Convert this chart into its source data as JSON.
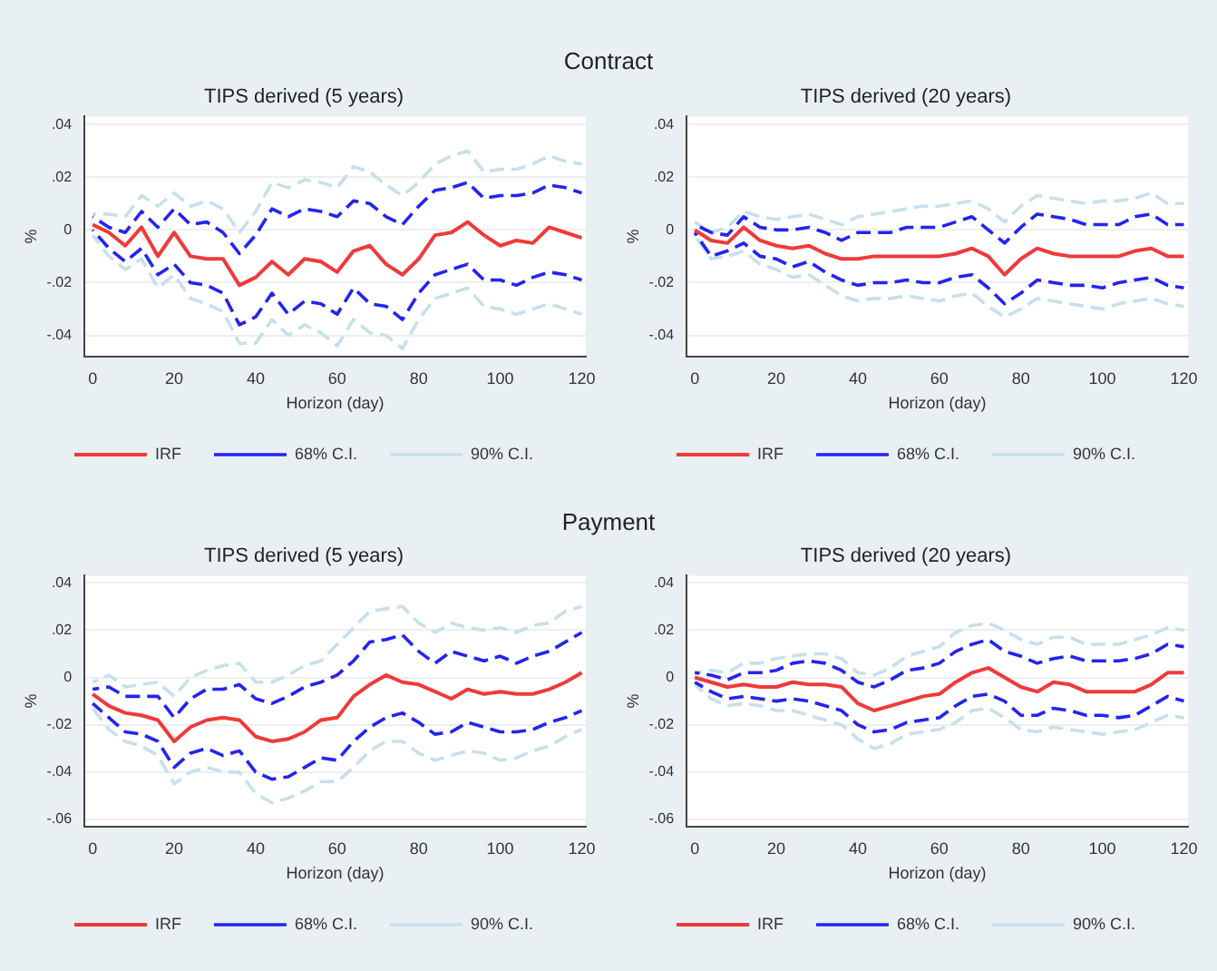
{
  "chart_data": [
    {
      "type": "line",
      "title": "TIPS derived (5 years)",
      "annotations": [
        "Contract"
      ],
      "xlabel": "Horizon (day)",
      "ylabel": "%",
      "grid": "y",
      "legend": "bottom",
      "marker": "none",
      "x": [
        0,
        4,
        8,
        12,
        16,
        20,
        24,
        28,
        32,
        36,
        40,
        44,
        48,
        52,
        56,
        60,
        64,
        68,
        72,
        76,
        80,
        84,
        88,
        92,
        96,
        100,
        104,
        108,
        112,
        116,
        120
      ],
      "xlim": [
        -2,
        121
      ],
      "xticks": [
        0,
        20,
        40,
        60,
        80,
        100,
        120
      ],
      "ylim": [
        -0.048,
        0.043
      ],
      "yticks": [
        {
          "value": 0.04,
          "label": ".04"
        },
        {
          "value": 0.02,
          "label": ".02"
        },
        {
          "value": 0,
          "label": "0"
        },
        {
          "value": -0.02,
          "label": "-.02"
        },
        {
          "value": -0.04,
          "label": "-.04"
        }
      ],
      "series": [
        {
          "name": "IRF",
          "color": "#f03a3a",
          "line_style": "solid",
          "values": [
            0.002,
            -0.001,
            -0.006,
            0.001,
            -0.01,
            -0.001,
            -0.01,
            -0.011,
            -0.011,
            -0.021,
            -0.018,
            -0.012,
            -0.017,
            -0.011,
            -0.012,
            -0.016,
            -0.008,
            -0.006,
            -0.013,
            -0.017,
            -0.011,
            -0.002,
            -0.001,
            0.003,
            -0.002,
            -0.006,
            -0.004,
            -0.005,
            0.001,
            -0.001,
            -0.003
          ]
        },
        {
          "name": "68% C.I.",
          "color": "#2424f0",
          "line_style": "dashed",
          "values": [
            0.005,
            0.001,
            -0.001,
            0.007,
            0.001,
            0.008,
            0.002,
            0.003,
            -0.001,
            -0.009,
            -0.002,
            0.008,
            0.005,
            0.008,
            0.007,
            0.005,
            0.011,
            0.01,
            0.005,
            0.002,
            0.009,
            0.015,
            0.016,
            0.018,
            0.012,
            0.013,
            0.013,
            0.014,
            0.017,
            0.016,
            0.014
          ]
        },
        {
          "color": "#2424f0",
          "line_style": "dashed",
          "values": [
            0,
            -0.007,
            -0.012,
            -0.007,
            -0.017,
            -0.013,
            -0.02,
            -0.021,
            -0.024,
            -0.036,
            -0.033,
            -0.024,
            -0.032,
            -0.027,
            -0.028,
            -0.032,
            -0.022,
            -0.028,
            -0.029,
            -0.034,
            -0.024,
            -0.017,
            -0.015,
            -0.013,
            -0.019,
            -0.019,
            -0.021,
            -0.018,
            -0.016,
            -0.017,
            -0.019
          ]
        },
        {
          "name": "90% C.I.",
          "color": "#c6e0ec",
          "line_style": "dashed",
          "values": [
            0.006,
            0.006,
            0.005,
            0.013,
            0.009,
            0.014,
            0.009,
            0.011,
            0.008,
            -0.001,
            0.007,
            0.018,
            0.016,
            0.019,
            0.018,
            0.016,
            0.024,
            0.022,
            0.017,
            0.013,
            0.018,
            0.025,
            0.028,
            0.03,
            0.022,
            0.023,
            0.023,
            0.025,
            0.028,
            0.026,
            0.025
          ]
        },
        {
          "color": "#c6e0ec",
          "line_style": "dashed",
          "values": [
            -0.002,
            -0.01,
            -0.015,
            -0.011,
            -0.022,
            -0.017,
            -0.026,
            -0.028,
            -0.031,
            -0.043,
            -0.043,
            -0.034,
            -0.04,
            -0.036,
            -0.039,
            -0.044,
            -0.034,
            -0.039,
            -0.04,
            -0.045,
            -0.034,
            -0.026,
            -0.024,
            -0.022,
            -0.029,
            -0.03,
            -0.032,
            -0.03,
            -0.028,
            -0.03,
            -0.032
          ]
        }
      ]
    },
    {
      "type": "line",
      "title": "TIPS derived (20 years)",
      "xlabel": "Horizon (day)",
      "ylabel": "%",
      "grid": "y",
      "legend": "bottom",
      "marker": "none",
      "x": [
        0,
        4,
        8,
        12,
        16,
        20,
        24,
        28,
        32,
        36,
        40,
        44,
        48,
        52,
        56,
        60,
        64,
        68,
        72,
        76,
        80,
        84,
        88,
        92,
        96,
        100,
        104,
        108,
        112,
        116,
        120
      ],
      "xlim": [
        -2,
        121
      ],
      "xticks": [
        0,
        20,
        40,
        60,
        80,
        100,
        120
      ],
      "ylim": [
        -0.048,
        0.043
      ],
      "yticks": [
        {
          "value": 0.04,
          "label": ".04"
        },
        {
          "value": 0.02,
          "label": ".02"
        },
        {
          "value": 0,
          "label": "0"
        },
        {
          "value": -0.02,
          "label": "-.02"
        },
        {
          "value": -0.04,
          "label": "-.04"
        }
      ],
      "series": [
        {
          "name": "IRF",
          "color": "#f03a3a",
          "line_style": "solid",
          "values": [
            0,
            -0.004,
            -0.005,
            0.001,
            -0.004,
            -0.006,
            -0.007,
            -0.006,
            -0.009,
            -0.011,
            -0.011,
            -0.01,
            -0.01,
            -0.01,
            -0.01,
            -0.01,
            -0.009,
            -0.007,
            -0.01,
            -0.017,
            -0.011,
            -0.007,
            -0.009,
            -0.01,
            -0.01,
            -0.01,
            -0.01,
            -0.008,
            -0.007,
            -0.01,
            -0.01
          ]
        },
        {
          "name": "68% C.I.",
          "color": "#2424f0",
          "line_style": "dashed",
          "values": [
            0.002,
            -0.001,
            -0.002,
            0.005,
            0.001,
            0,
            0,
            0.001,
            -0.001,
            -0.004,
            -0.001,
            -0.001,
            -0.001,
            0.001,
            0.001,
            0.001,
            0.003,
            0.005,
            0,
            -0.005,
            0.001,
            0.006,
            0.005,
            0.004,
            0.002,
            0.002,
            0.002,
            0.005,
            0.006,
            0.002,
            0.002
          ]
        },
        {
          "color": "#2424f0",
          "line_style": "dashed",
          "values": [
            -0.001,
            -0.01,
            -0.008,
            -0.005,
            -0.01,
            -0.011,
            -0.014,
            -0.012,
            -0.016,
            -0.019,
            -0.021,
            -0.02,
            -0.02,
            -0.019,
            -0.02,
            -0.02,
            -0.018,
            -0.017,
            -0.022,
            -0.028,
            -0.024,
            -0.019,
            -0.02,
            -0.021,
            -0.021,
            -0.022,
            -0.02,
            -0.019,
            -0.018,
            -0.021,
            -0.022
          ]
        },
        {
          "name": "90% C.I.",
          "color": "#c6e0ec",
          "line_style": "dashed",
          "values": [
            0.003,
            -0.001,
            0.001,
            0.007,
            0.005,
            0.004,
            0.005,
            0.006,
            0.004,
            0.002,
            0.005,
            0.006,
            0.007,
            0.008,
            0.009,
            0.009,
            0.01,
            0.011,
            0.008,
            0.003,
            0.009,
            0.013,
            0.012,
            0.011,
            0.01,
            0.011,
            0.011,
            0.012,
            0.014,
            0.01,
            0.01
          ]
        },
        {
          "color": "#c6e0ec",
          "line_style": "dashed",
          "values": [
            -0.002,
            -0.011,
            -0.01,
            -0.008,
            -0.013,
            -0.015,
            -0.018,
            -0.017,
            -0.021,
            -0.025,
            -0.027,
            -0.026,
            -0.026,
            -0.025,
            -0.026,
            -0.027,
            -0.025,
            -0.024,
            -0.029,
            -0.033,
            -0.03,
            -0.026,
            -0.027,
            -0.028,
            -0.029,
            -0.03,
            -0.028,
            -0.027,
            -0.026,
            -0.028,
            -0.029
          ]
        }
      ]
    },
    {
      "type": "line",
      "title": "TIPS derived (5 years)",
      "annotations": [
        "Payment"
      ],
      "xlabel": "Horizon (day)",
      "ylabel": "%",
      "grid": "y",
      "legend": "bottom",
      "marker": "none",
      "x": [
        0,
        4,
        8,
        12,
        16,
        20,
        24,
        28,
        32,
        36,
        40,
        44,
        48,
        52,
        56,
        60,
        64,
        68,
        72,
        76,
        80,
        84,
        88,
        92,
        96,
        100,
        104,
        108,
        112,
        116,
        120
      ],
      "xlim": [
        -2,
        121
      ],
      "xticks": [
        0,
        20,
        40,
        60,
        80,
        100,
        120
      ],
      "ylim": [
        -0.063,
        0.043
      ],
      "yticks": [
        {
          "value": 0.04,
          "label": ".04"
        },
        {
          "value": 0.02,
          "label": ".02"
        },
        {
          "value": 0,
          "label": "0"
        },
        {
          "value": -0.02,
          "label": "-.02"
        },
        {
          "value": -0.04,
          "label": "-.04"
        },
        {
          "value": -0.06,
          "label": "-.06"
        }
      ],
      "series": [
        {
          "name": "IRF",
          "color": "#f03a3a",
          "line_style": "solid",
          "values": [
            -0.007,
            -0.012,
            -0.015,
            -0.016,
            -0.018,
            -0.027,
            -0.021,
            -0.018,
            -0.017,
            -0.018,
            -0.025,
            -0.027,
            -0.026,
            -0.023,
            -0.018,
            -0.017,
            -0.008,
            -0.003,
            0.001,
            -0.002,
            -0.003,
            -0.006,
            -0.009,
            -0.005,
            -0.007,
            -0.006,
            -0.007,
            -0.007,
            -0.005,
            -0.002,
            0.002
          ]
        },
        {
          "name": "68% C.I.",
          "color": "#2424f0",
          "line_style": "dashed",
          "values": [
            -0.005,
            -0.004,
            -0.008,
            -0.008,
            -0.008,
            -0.017,
            -0.009,
            -0.005,
            -0.005,
            -0.003,
            -0.009,
            -0.011,
            -0.008,
            -0.004,
            -0.002,
            0.001,
            0.007,
            0.015,
            0.016,
            0.018,
            0.011,
            0.006,
            0.011,
            0.009,
            0.007,
            0.009,
            0.006,
            0.009,
            0.011,
            0.015,
            0.019
          ]
        },
        {
          "color": "#2424f0",
          "line_style": "dashed",
          "values": [
            -0.011,
            -0.017,
            -0.023,
            -0.024,
            -0.027,
            -0.038,
            -0.032,
            -0.03,
            -0.033,
            -0.031,
            -0.04,
            -0.043,
            -0.042,
            -0.038,
            -0.034,
            -0.035,
            -0.027,
            -0.021,
            -0.017,
            -0.015,
            -0.019,
            -0.024,
            -0.023,
            -0.019,
            -0.021,
            -0.023,
            -0.023,
            -0.022,
            -0.019,
            -0.017,
            -0.014
          ]
        },
        {
          "name": "90% C.I.",
          "color": "#c6e0ec",
          "line_style": "dashed",
          "values": [
            -0.002,
            0.001,
            -0.004,
            -0.003,
            -0.002,
            -0.008,
            0,
            0.003,
            0.005,
            0.006,
            -0.002,
            -0.002,
            0.001,
            0.005,
            0.007,
            0.014,
            0.021,
            0.028,
            0.029,
            0.03,
            0.023,
            0.019,
            0.023,
            0.021,
            0.02,
            0.021,
            0.019,
            0.022,
            0.023,
            0.028,
            0.03
          ]
        },
        {
          "color": "#c6e0ec",
          "line_style": "dashed",
          "values": [
            -0.013,
            -0.022,
            -0.027,
            -0.029,
            -0.033,
            -0.045,
            -0.04,
            -0.038,
            -0.04,
            -0.04,
            -0.049,
            -0.053,
            -0.051,
            -0.048,
            -0.044,
            -0.044,
            -0.038,
            -0.031,
            -0.027,
            -0.027,
            -0.032,
            -0.035,
            -0.033,
            -0.031,
            -0.032,
            -0.035,
            -0.034,
            -0.031,
            -0.029,
            -0.025,
            -0.022
          ]
        }
      ]
    },
    {
      "type": "line",
      "title": "TIPS derived (20 years)",
      "xlabel": "Horizon (day)",
      "ylabel": "%",
      "grid": "y",
      "legend": "bottom",
      "marker": "none",
      "x": [
        0,
        4,
        8,
        12,
        16,
        20,
        24,
        28,
        32,
        36,
        40,
        44,
        48,
        52,
        56,
        60,
        64,
        68,
        72,
        76,
        80,
        84,
        88,
        92,
        96,
        100,
        104,
        108,
        112,
        116,
        120
      ],
      "xlim": [
        -2,
        121
      ],
      "xticks": [
        0,
        20,
        40,
        60,
        80,
        100,
        120
      ],
      "ylim": [
        -0.063,
        0.043
      ],
      "yticks": [
        {
          "value": 0.04,
          "label": ".04"
        },
        {
          "value": 0.02,
          "label": ".02"
        },
        {
          "value": 0,
          "label": "0"
        },
        {
          "value": -0.02,
          "label": "-.02"
        },
        {
          "value": -0.04,
          "label": "-.04"
        },
        {
          "value": -0.06,
          "label": "-.06"
        }
      ],
      "series": [
        {
          "name": "IRF",
          "color": "#f03a3a",
          "line_style": "solid",
          "values": [
            0,
            -0.002,
            -0.004,
            -0.003,
            -0.004,
            -0.004,
            -0.002,
            -0.003,
            -0.003,
            -0.004,
            -0.011,
            -0.014,
            -0.012,
            -0.01,
            -0.008,
            -0.007,
            -0.002,
            0.002,
            0.004,
            0,
            -0.004,
            -0.006,
            -0.002,
            -0.003,
            -0.006,
            -0.006,
            -0.006,
            -0.006,
            -0.003,
            0.002,
            0.002
          ]
        },
        {
          "name": "68% C.I.",
          "color": "#2424f0",
          "line_style": "dashed",
          "values": [
            0.002,
            0.001,
            -0.001,
            0.002,
            0.002,
            0.003,
            0.006,
            0.007,
            0.006,
            0.003,
            -0.002,
            -0.004,
            -0.001,
            0.003,
            0.004,
            0.006,
            0.011,
            0.014,
            0.016,
            0.011,
            0.009,
            0.006,
            0.008,
            0.009,
            0.007,
            0.007,
            0.007,
            0.008,
            0.01,
            0.014,
            0.013
          ]
        },
        {
          "color": "#2424f0",
          "line_style": "dashed",
          "values": [
            -0.002,
            -0.006,
            -0.009,
            -0.008,
            -0.009,
            -0.01,
            -0.009,
            -0.01,
            -0.012,
            -0.014,
            -0.02,
            -0.023,
            -0.022,
            -0.019,
            -0.018,
            -0.017,
            -0.012,
            -0.008,
            -0.007,
            -0.01,
            -0.016,
            -0.016,
            -0.013,
            -0.014,
            -0.016,
            -0.016,
            -0.017,
            -0.016,
            -0.012,
            -0.008,
            -0.01
          ]
        },
        {
          "name": "90% C.I.",
          "color": "#c6e0ec",
          "line_style": "dashed",
          "values": [
            0.002,
            0.003,
            0.002,
            0.006,
            0.006,
            0.008,
            0.009,
            0.01,
            0.01,
            0.008,
            0.002,
            0.001,
            0.004,
            0.009,
            0.011,
            0.013,
            0.019,
            0.022,
            0.023,
            0.02,
            0.016,
            0.014,
            0.017,
            0.017,
            0.014,
            0.014,
            0.014,
            0.016,
            0.018,
            0.021,
            0.02
          ]
        },
        {
          "color": "#c6e0ec",
          "line_style": "dashed",
          "values": [
            -0.003,
            -0.009,
            -0.012,
            -0.011,
            -0.012,
            -0.014,
            -0.014,
            -0.016,
            -0.018,
            -0.02,
            -0.026,
            -0.03,
            -0.028,
            -0.024,
            -0.023,
            -0.022,
            -0.019,
            -0.014,
            -0.013,
            -0.017,
            -0.022,
            -0.023,
            -0.021,
            -0.022,
            -0.023,
            -0.024,
            -0.023,
            -0.022,
            -0.019,
            -0.016,
            -0.017
          ]
        }
      ]
    }
  ]
}
